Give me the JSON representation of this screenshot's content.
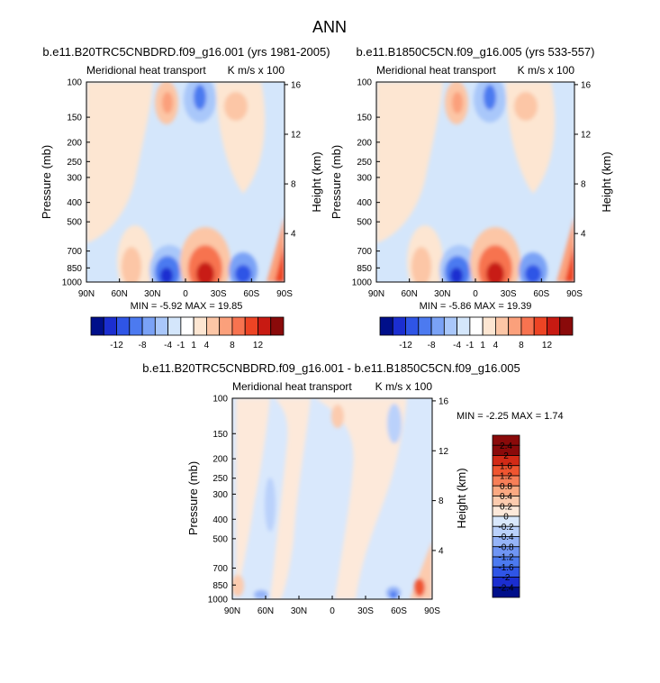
{
  "page_title": "ANN",
  "chart_data": [
    {
      "type": "heatmap",
      "title": "b.e11.B20TRC5CNBDRD.f09_g16.001 (yrs 1981-2005)",
      "subtitle_left": "Meridional heat transport",
      "subtitle_right": "K m/s x 100",
      "ylabel": "Pressure (mb)",
      "ylabel_right": "Height (km)",
      "x_ticks": [
        "90N",
        "60N",
        "30N",
        "0",
        "30S",
        "60S",
        "90S"
      ],
      "y_ticks": [
        "100",
        "150",
        "200",
        "250",
        "300",
        "400",
        "500",
        "700",
        "850",
        "1000"
      ],
      "y_right_ticks": [
        "16",
        "12",
        "8",
        "4"
      ],
      "minmax": "MIN =  -5.92  MAX =  19.85",
      "colorbar_levels": [
        -12,
        -8,
        -4,
        -1,
        1,
        4,
        8,
        12
      ],
      "colorbar_labels": [
        "-12",
        "-8",
        "-4",
        "-1",
        "1",
        "4",
        "8",
        "12"
      ]
    },
    {
      "type": "heatmap",
      "title": "b.e11.B1850C5CN.f09_g16.005 (yrs 533-557)",
      "subtitle_left": "Meridional heat transport",
      "subtitle_right": "K m/s x 100",
      "ylabel": "Pressure (mb)",
      "ylabel_right": "Height (km)",
      "x_ticks": [
        "90N",
        "60N",
        "30N",
        "0",
        "30S",
        "60S",
        "90S"
      ],
      "y_ticks": [
        "100",
        "150",
        "200",
        "250",
        "300",
        "400",
        "500",
        "700",
        "850",
        "1000"
      ],
      "y_right_ticks": [
        "16",
        "12",
        "8",
        "4"
      ],
      "minmax": "MIN =  -5.86  MAX =  19.39",
      "colorbar_levels": [
        -12,
        -8,
        -4,
        -1,
        1,
        4,
        8,
        12
      ],
      "colorbar_labels": [
        "-12",
        "-8",
        "-4",
        "-1",
        "1",
        "4",
        "8",
        "12"
      ]
    },
    {
      "type": "heatmap",
      "title": "b.e11.B20TRC5CNBDRD.f09_g16.001 - b.e11.B1850C5CN.f09_g16.005",
      "subtitle_left": "Meridional heat transport",
      "subtitle_right": "K m/s x 100",
      "ylabel": "Pressure (mb)",
      "ylabel_right": "Height (km)",
      "x_ticks": [
        "90N",
        "60N",
        "30N",
        "0",
        "30S",
        "60S",
        "90S"
      ],
      "y_ticks": [
        "100",
        "150",
        "200",
        "250",
        "300",
        "400",
        "500",
        "700",
        "850",
        "1000"
      ],
      "y_right_ticks": [
        "16",
        "12",
        "8",
        "4"
      ],
      "minmax": "MIN =  -2.25  MAX =   1.74",
      "colorbar_levels": [
        2.4,
        2,
        1.6,
        1.2,
        0.8,
        0.4,
        0.2,
        0,
        -0.2,
        -0.4,
        -0.8,
        -1.2,
        -1.6,
        -2,
        -2.4
      ],
      "colorbar_labels": [
        "2.4",
        "2",
        "1.6",
        "1.2",
        "0.8",
        "0.4",
        "0.2",
        "0",
        "-0.2",
        "-0.4",
        "-0.8",
        "-1.2",
        "-1.6",
        "-2",
        "-2.4"
      ]
    }
  ],
  "colors": {
    "field_bg": "#d4e6fb",
    "panel_a_b": [
      "#000f8a",
      "#1b2ed0",
      "#2f55e6",
      "#4c7af0",
      "#7aa2f6",
      "#a9c7fa",
      "#d4e6fb",
      "#ffffff",
      "#fde6d2",
      "#fcc6a6",
      "#fba07b",
      "#f77350",
      "#ed4424",
      "#c81a12",
      "#8a0a0a"
    ],
    "diff": [
      "#000f8a",
      "#1b2ed0",
      "#2f55e6",
      "#4c7af0",
      "#6f95f4",
      "#95b4f8",
      "#bad1fb",
      "#d9e8fc",
      "#fde9da",
      "#fccbae",
      "#fba982",
      "#f77f58",
      "#ef5530",
      "#d22a16",
      "#8a0a0a"
    ]
  }
}
